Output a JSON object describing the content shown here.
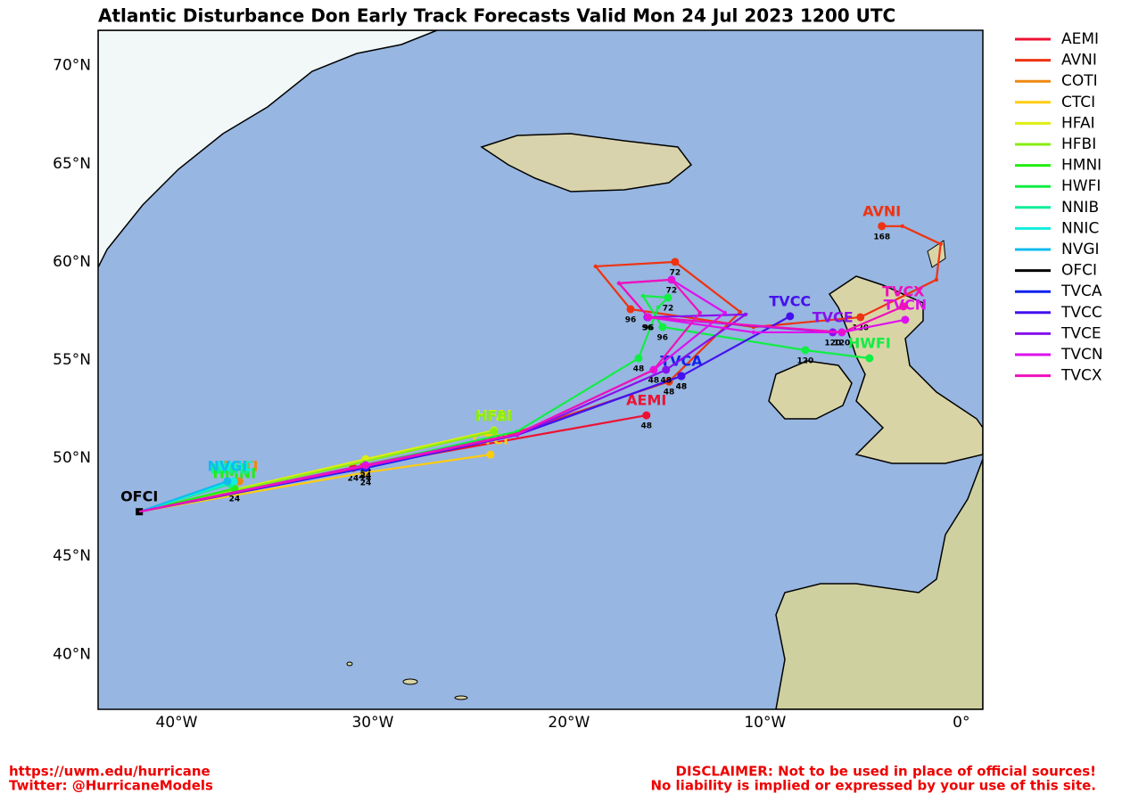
{
  "chart_data": {
    "type": "map",
    "title": "Atlantic Disturbance Don Early Track Forecasts Valid Mon 24 Jul 2023 1200 UTC",
    "xlim": [
      -44,
      1.1
    ],
    "ylim": [
      37.2,
      71.8
    ],
    "xticks": [
      {
        "value": -40,
        "label": "40°W"
      },
      {
        "value": -30,
        "label": "30°W"
      },
      {
        "value": -20,
        "label": "20°W"
      },
      {
        "value": -10,
        "label": "10°W"
      },
      {
        "value": 0,
        "label": "0°"
      }
    ],
    "yticks": [
      {
        "value": 40,
        "label": "40°N"
      },
      {
        "value": 45,
        "label": "45°N"
      },
      {
        "value": 50,
        "label": "50°N"
      },
      {
        "value": 55,
        "label": "55°N"
      },
      {
        "value": 60,
        "label": "60°N"
      },
      {
        "value": 65,
        "label": "65°N"
      },
      {
        "value": 70,
        "label": "70°N"
      }
    ],
    "grid": false,
    "legend": "outside-right",
    "series": [
      {
        "name": "AEMI",
        "color": "#ee1133",
        "lon": [
          -41.9,
          -31.0,
          -16.05
        ],
        "lat": [
          47.27,
          49.5,
          52.18
        ],
        "point_labels": [
          null,
          "24",
          "48"
        ]
      },
      {
        "name": "AVNI",
        "color": "#ee3311",
        "lon": [
          -41.9,
          -30.45,
          -22.64,
          -14.9,
          -11.27,
          -14.59,
          -18.64,
          -16.86,
          -10.59,
          -5.14,
          -1.27,
          -1.05,
          -3.0,
          -4.05
        ],
        "lat": [
          47.27,
          49.64,
          51.32,
          53.9,
          57.45,
          60.0,
          59.77,
          57.59,
          56.68,
          57.18,
          59.09,
          60.91,
          61.82,
          61.82
        ],
        "point_labels": [
          null,
          "24",
          null,
          "48",
          null,
          "72",
          null,
          "96",
          null,
          "120",
          null,
          null,
          null,
          "168"
        ]
      },
      {
        "name": "COTI",
        "color": "#ee8811",
        "lon": [
          -41.9,
          -36.8
        ],
        "lat": [
          47.27,
          48.82
        ],
        "point_labels": [
          null,
          null
        ]
      },
      {
        "name": "CTCI",
        "color": "#ffcc11",
        "lon": [
          -41.9,
          -30.36,
          -24.0
        ],
        "lat": [
          47.27,
          49.27,
          50.18
        ],
        "point_labels": [
          null,
          "24",
          null
        ]
      },
      {
        "name": "HFAI",
        "color": "#ddee11",
        "lon": [
          -41.9,
          -30.36,
          -23.82
        ],
        "lat": [
          47.27,
          49.95,
          51.41
        ],
        "point_labels": [
          null,
          "24",
          null
        ]
      },
      {
        "name": "HFBI",
        "color": "#88ee11",
        "lon": [
          -41.9,
          -30.45,
          -23.82
        ],
        "lat": [
          47.27,
          49.82,
          51.36
        ],
        "point_labels": [
          null,
          null,
          null
        ]
      },
      {
        "name": "HMNI",
        "color": "#22ee11",
        "lon": [
          -41.9,
          -37.05
        ],
        "lat": [
          47.27,
          48.45
        ],
        "point_labels": [
          null,
          "24"
        ]
      },
      {
        "name": "HWFI",
        "color": "#11ee44",
        "lon": [
          -41.9,
          -30.36,
          -22.64,
          -16.45,
          -15.45,
          -14.95,
          -16.23,
          -15.23,
          -7.95,
          -4.68
        ],
        "lat": [
          47.27,
          49.64,
          51.36,
          55.09,
          57.68,
          58.18,
          58.27,
          56.68,
          55.5,
          55.09
        ],
        "point_labels": [
          null,
          "24",
          null,
          "48",
          null,
          "72",
          null,
          "96",
          "120",
          null
        ]
      },
      {
        "name": "NNIB",
        "color": "#11ee99",
        "lon": [
          -41.9,
          -37.27
        ],
        "lat": [
          47.27,
          48.68
        ],
        "point_labels": [
          null,
          null
        ]
      },
      {
        "name": "NNIC",
        "color": "#11eedd",
        "lon": [
          -41.9,
          -37.09
        ],
        "lat": [
          47.27,
          48.82
        ],
        "point_labels": [
          null,
          null
        ]
      },
      {
        "name": "NVGI",
        "color": "#11bbee",
        "lon": [
          -41.9,
          -37.41
        ],
        "lat": [
          47.27,
          48.82
        ],
        "point_labels": [
          null,
          null
        ]
      },
      {
        "name": "OFCI",
        "color": "#000000",
        "lon": [
          -41.9
        ],
        "lat": [
          47.27
        ],
        "point_labels": [
          null
        ]
      },
      {
        "name": "TVCA",
        "color": "#1122ee",
        "lon": [
          -41.9,
          -30.36,
          -22.64,
          -14.27
        ],
        "lat": [
          47.27,
          49.5,
          51.18,
          54.18
        ],
        "point_labels": [
          null,
          "24",
          null,
          "48"
        ]
      },
      {
        "name": "TVCC",
        "color": "#4411ee",
        "lon": [
          -41.9,
          -30.36,
          -22.64,
          -14.27,
          -8.73
        ],
        "lat": [
          47.27,
          49.55,
          51.18,
          54.18,
          57.23
        ],
        "point_labels": [
          null,
          null,
          null,
          "48",
          null
        ]
      },
      {
        "name": "TVCE",
        "color": "#8811ee",
        "lon": [
          -41.9,
          -30.36,
          -22.64,
          -15.05,
          -11.0,
          -16.0,
          -6.55
        ],
        "lat": [
          47.27,
          49.59,
          51.18,
          54.5,
          57.32,
          57.18,
          56.41
        ],
        "point_labels": [
          null,
          null,
          null,
          "48",
          null,
          "96",
          "120"
        ]
      },
      {
        "name": "TVCN",
        "color": "#dd11ee",
        "lon": [
          -41.9,
          -30.36,
          -22.64,
          -15.68,
          -12.05,
          -14.77,
          -17.45,
          -15.95,
          -10.59,
          -6.09,
          -2.86
        ],
        "lat": [
          47.27,
          49.64,
          51.23,
          54.5,
          57.41,
          59.09,
          58.91,
          57.18,
          56.41,
          56.41,
          57.05
        ],
        "point_labels": [
          null,
          "24",
          null,
          "48",
          null,
          "72",
          null,
          "96",
          null,
          "120",
          null
        ]
      },
      {
        "name": "TVCX",
        "color": "#ee11bb",
        "lon": [
          -41.9,
          -30.36,
          -22.64,
          -15.68,
          -13.32,
          -14.77,
          -17.45,
          -15.95,
          -6.05,
          -2.95
        ],
        "lat": [
          47.27,
          49.59,
          51.23,
          54.5,
          57.41,
          59.09,
          58.91,
          57.18,
          56.41,
          57.73
        ],
        "point_labels": [
          null,
          null,
          null,
          null,
          null,
          null,
          null,
          null,
          null,
          null
        ]
      }
    ],
    "footer_left": [
      "https://uwm.edu/hurricane",
      "Twitter: @HurricaneModels"
    ],
    "footer_right": [
      "DISCLAIMER: Not to be used in place of official sources!",
      "No liability is implied or expressed by your use of this site."
    ]
  }
}
